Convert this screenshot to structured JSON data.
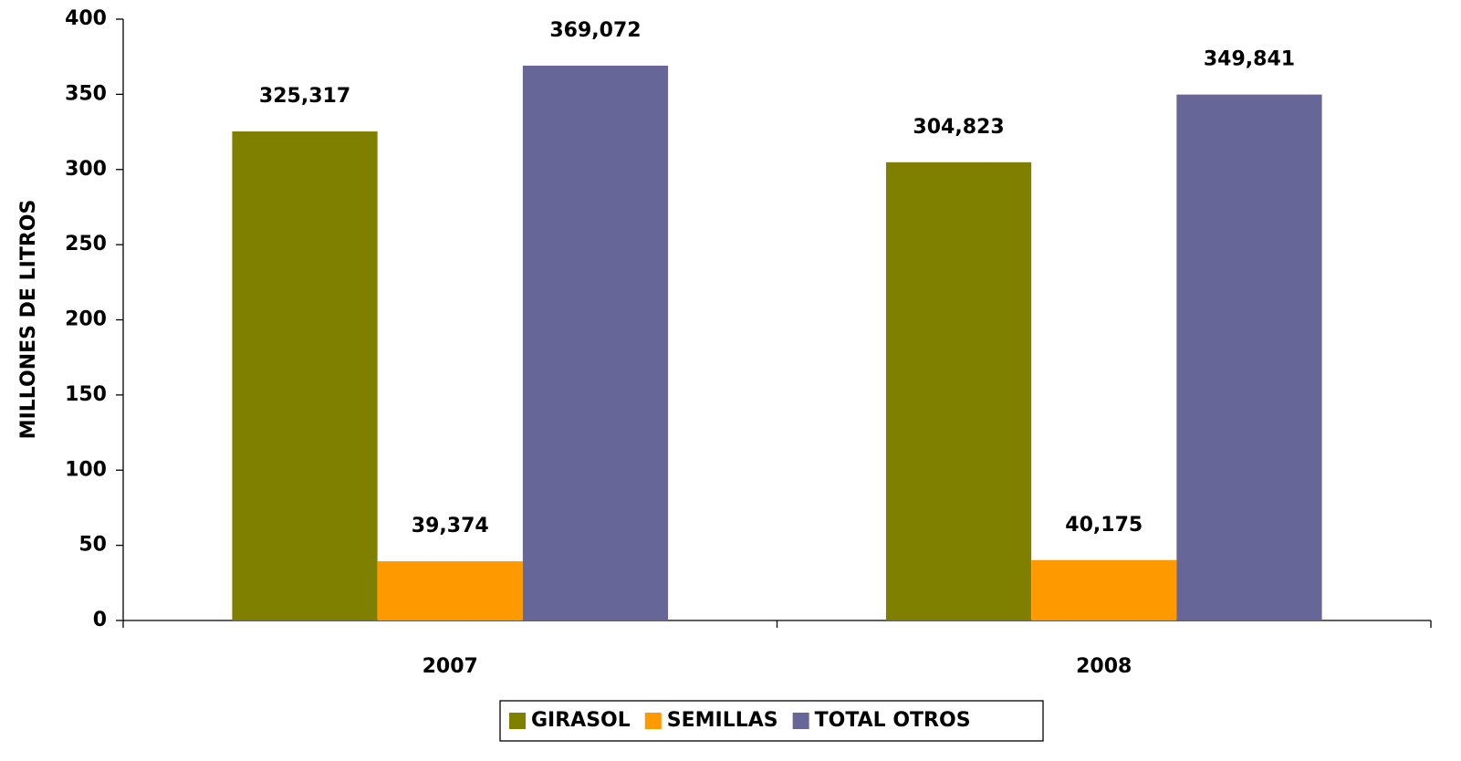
{
  "chart_data": {
    "type": "bar",
    "y_label": "MILLONES DE LITROS",
    "categories": [
      "2007",
      "2008"
    ],
    "series": [
      {
        "name": "GIRASOL",
        "color": "#808000",
        "values": [
          325.317,
          304.823
        ],
        "value_labels": [
          "325,317",
          "304,823"
        ]
      },
      {
        "name": "SEMILLAS",
        "color": "#ff9900",
        "values": [
          39.374,
          40.175
        ],
        "value_labels": [
          "39,374",
          "40,175"
        ]
      },
      {
        "name": "TOTAL OTROS",
        "color": "#666699",
        "values": [
          369.072,
          349.841
        ],
        "value_labels": [
          "369,072",
          "349,841"
        ]
      }
    ],
    "ylim": [
      0,
      400
    ],
    "yticks": [
      0,
      50,
      100,
      150,
      200,
      250,
      300,
      350,
      400
    ],
    "grid": false,
    "legend": "bottom"
  }
}
